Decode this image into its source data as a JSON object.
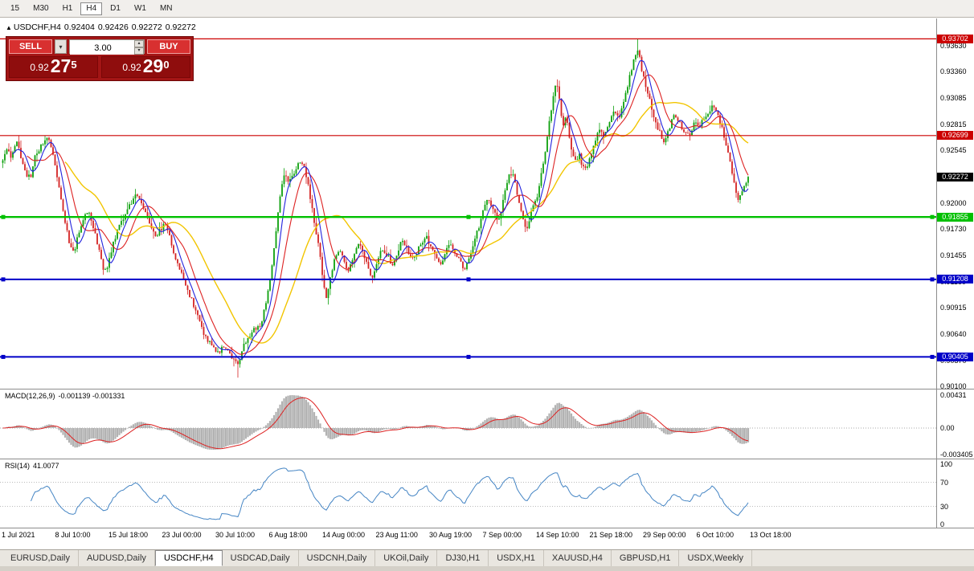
{
  "icons": {
    "bar_up_arrow": "▲",
    "dropdown_caret": "▾",
    "spin_up": "▴",
    "spin_down": "▾"
  },
  "toolbar": {
    "timeframes": [
      {
        "label": "15",
        "active": false
      },
      {
        "label": "M30",
        "active": false
      },
      {
        "label": "H1",
        "active": false
      },
      {
        "label": "H4",
        "active": true
      },
      {
        "label": "D1",
        "active": false
      },
      {
        "label": "W1",
        "active": false
      },
      {
        "label": "MN",
        "active": false
      }
    ]
  },
  "chart_header": {
    "symbol": "USDCHF,H4",
    "open": "0.92404",
    "high": "0.92426",
    "low": "0.92272",
    "close": "0.92272"
  },
  "trade_panel": {
    "sell_label": "SELL",
    "buy_label": "BUY",
    "volume": "3.00",
    "bid": {
      "prefix": "0.92",
      "big": "27",
      "sup": "5"
    },
    "ask": {
      "prefix": "0.92",
      "big": "29",
      "sup": "0"
    }
  },
  "price_axis": {
    "ticks": [
      "0.93630",
      "0.93360",
      "0.93085",
      "0.92815",
      "0.92545",
      "0.92270",
      "0.92000",
      "0.91730",
      "0.91455",
      "0.91180",
      "0.90915",
      "0.90640",
      "0.90370",
      "0.90100"
    ],
    "levels": [
      {
        "label": "0.93702",
        "value": 0.93702,
        "color": "#cc0000",
        "line_width": 1.2,
        "handles": false,
        "kind": "resistance-line"
      },
      {
        "label": "0.92699",
        "value": 0.92699,
        "color": "#cc0000",
        "line_width": 1.2,
        "handles": false,
        "kind": "resistance-line"
      },
      {
        "label": "0.92272",
        "value": 0.92272,
        "color": "#000000",
        "line_width": 0,
        "handles": false,
        "kind": "current-price-marker"
      },
      {
        "label": "0.91855",
        "value": 0.91855,
        "color": "#00c000",
        "line_width": 2.4,
        "handles": true,
        "kind": "support-line"
      },
      {
        "label": "0.91208",
        "value": 0.91208,
        "color": "#0000c8",
        "line_width": 2,
        "handles": true,
        "kind": "support-line"
      },
      {
        "label": "0.90405",
        "value": 0.90405,
        "color": "#0000c8",
        "line_width": 2,
        "handles": true,
        "kind": "support-line"
      }
    ]
  },
  "time_axis": [
    "1 Jul 2021",
    "8 Jul 10:00",
    "15 Jul 18:00",
    "23 Jul 00:00",
    "30 Jul 10:00",
    "6 Aug 18:00",
    "14 Aug 00:00",
    "23 Aug 11:00",
    "30 Aug 19:00",
    "7 Sep 00:00",
    "14 Sep 10:00",
    "21 Sep 18:00",
    "29 Sep 00:00",
    "6 Oct 10:00",
    "13 Oct 18:00"
  ],
  "macd_panel": {
    "label": "MACD(12,26,9)",
    "values": "-0.001139 -0.001331",
    "axis": [
      "0.00431",
      "0.00",
      "-0.003405"
    ]
  },
  "rsi_panel": {
    "label": "RSI(14)",
    "value": "41.0077",
    "axis": [
      "100",
      "70",
      "30",
      "0"
    ]
  },
  "tabs": [
    {
      "label": "EURUSD,Daily",
      "active": false
    },
    {
      "label": "AUDUSD,Daily",
      "active": false
    },
    {
      "label": "USDCHF,H4",
      "active": true
    },
    {
      "label": "USDCAD,Daily",
      "active": false
    },
    {
      "label": "USDCNH,Daily",
      "active": false
    },
    {
      "label": "UKOil,Daily",
      "active": false
    },
    {
      "label": "DJ30,H1",
      "active": false
    },
    {
      "label": "USDX,H1",
      "active": false
    },
    {
      "label": "XAUUSD,H4",
      "active": false
    },
    {
      "label": "GBPUSD,H1",
      "active": false
    },
    {
      "label": "USDX,Weekly",
      "active": false
    }
  ],
  "chart_data": {
    "type": "candlestick",
    "symbol": "USDCHF",
    "timeframe": "H4",
    "last_close": 0.92272,
    "session_high": 0.93702,
    "session_low": 0.9019,
    "y_axis_range": [
      0.901,
      0.93702
    ],
    "horizontal_levels": [
      0.93702,
      0.92699,
      0.91855,
      0.91208,
      0.90405
    ],
    "moving_averages": {
      "fast_blue": 6,
      "medium_red": 13,
      "slow_yellow": 32
    },
    "indicators": {
      "macd": {
        "fast": 12,
        "slow": 26,
        "signal": 9,
        "last_macd": -0.001139,
        "last_signal": -0.001331,
        "axis_max": 0.00431,
        "axis_min": -0.003405
      },
      "rsi": {
        "period": 14,
        "last": 41.0077,
        "levels": [
          70,
          30
        ]
      }
    },
    "price_path": [
      [
        3,
        0.924
      ],
      [
        8,
        0.9256
      ],
      [
        14,
        0.9246
      ],
      [
        20,
        0.9266
      ],
      [
        26,
        0.9248
      ],
      [
        32,
        0.923
      ],
      [
        38,
        0.9226
      ],
      [
        44,
        0.925
      ],
      [
        52,
        0.9261
      ],
      [
        58,
        0.9271
      ],
      [
        64,
        0.9258
      ],
      [
        70,
        0.9232
      ],
      [
        78,
        0.9192
      ],
      [
        86,
        0.916
      ],
      [
        92,
        0.915
      ],
      [
        98,
        0.9169
      ],
      [
        104,
        0.9183
      ],
      [
        110,
        0.9191
      ],
      [
        116,
        0.9173
      ],
      [
        122,
        0.9157
      ],
      [
        128,
        0.9131
      ],
      [
        134,
        0.9134
      ],
      [
        140,
        0.9156
      ],
      [
        148,
        0.9176
      ],
      [
        156,
        0.919
      ],
      [
        164,
        0.9201
      ],
      [
        170,
        0.9208
      ],
      [
        176,
        0.9198
      ],
      [
        182,
        0.9186
      ],
      [
        188,
        0.9174
      ],
      [
        194,
        0.9166
      ],
      [
        200,
        0.9173
      ],
      [
        206,
        0.9178
      ],
      [
        212,
        0.9161
      ],
      [
        218,
        0.9141
      ],
      [
        224,
        0.9129
      ],
      [
        230,
        0.9117
      ],
      [
        236,
        0.9105
      ],
      [
        242,
        0.9091
      ],
      [
        248,
        0.9079
      ],
      [
        254,
        0.9063
      ],
      [
        260,
        0.9056
      ],
      [
        266,
        0.9049
      ],
      [
        272,
        0.9043
      ],
      [
        278,
        0.9051
      ],
      [
        284,
        0.9046
      ],
      [
        290,
        0.9039
      ],
      [
        296,
        0.9031
      ],
      [
        300,
        0.9046
      ],
      [
        306,
        0.9056
      ],
      [
        312,
        0.9063
      ],
      [
        318,
        0.9071
      ],
      [
        324,
        0.9073
      ],
      [
        330,
        0.9093
      ],
      [
        336,
        0.9121
      ],
      [
        342,
        0.9161
      ],
      [
        348,
        0.9206
      ],
      [
        354,
        0.9229
      ],
      [
        360,
        0.9222
      ],
      [
        366,
        0.9231
      ],
      [
        372,
        0.9241
      ],
      [
        378,
        0.9238
      ],
      [
        384,
        0.9216
      ],
      [
        390,
        0.9186
      ],
      [
        396,
        0.9156
      ],
      [
        402,
        0.9121
      ],
      [
        406,
        0.9101
      ],
      [
        410,
        0.9119
      ],
      [
        416,
        0.9141
      ],
      [
        422,
        0.9153
      ],
      [
        428,
        0.9139
      ],
      [
        434,
        0.9129
      ],
      [
        440,
        0.9146
      ],
      [
        446,
        0.9159
      ],
      [
        452,
        0.9149
      ],
      [
        458,
        0.9131
      ],
      [
        464,
        0.9123
      ],
      [
        470,
        0.9141
      ],
      [
        476,
        0.9153
      ],
      [
        482,
        0.9146
      ],
      [
        488,
        0.9136
      ],
      [
        494,
        0.9149
      ],
      [
        500,
        0.9161
      ],
      [
        506,
        0.9153
      ],
      [
        512,
        0.9141
      ],
      [
        518,
        0.9149
      ],
      [
        524,
        0.9159
      ],
      [
        530,
        0.9166
      ],
      [
        536,
        0.9153
      ],
      [
        542,
        0.9143
      ],
      [
        548,
        0.9136
      ],
      [
        554,
        0.9149
      ],
      [
        560,
        0.9156
      ],
      [
        566,
        0.9146
      ],
      [
        572,
        0.9139
      ],
      [
        578,
        0.9129
      ],
      [
        584,
        0.9141
      ],
      [
        590,
        0.9159
      ],
      [
        596,
        0.9176
      ],
      [
        602,
        0.9196
      ],
      [
        608,
        0.9204
      ],
      [
        614,
        0.9193
      ],
      [
        620,
        0.9183
      ],
      [
        626,
        0.9201
      ],
      [
        632,
        0.9226
      ],
      [
        638,
        0.9233
      ],
      [
        644,
        0.9206
      ],
      [
        650,
        0.9184
      ],
      [
        656,
        0.9173
      ],
      [
        662,
        0.9196
      ],
      [
        668,
        0.9206
      ],
      [
        674,
        0.9231
      ],
      [
        680,
        0.9263
      ],
      [
        686,
        0.9296
      ],
      [
        692,
        0.9326
      ],
      [
        696,
        0.9311
      ],
      [
        700,
        0.9276
      ],
      [
        704,
        0.9291
      ],
      [
        708,
        0.9271
      ],
      [
        712,
        0.9253
      ],
      [
        716,
        0.9243
      ],
      [
        720,
        0.9251
      ],
      [
        724,
        0.9241
      ],
      [
        728,
        0.9233
      ],
      [
        734,
        0.9246
      ],
      [
        740,
        0.9263
      ],
      [
        746,
        0.9276
      ],
      [
        752,
        0.9271
      ],
      [
        758,
        0.9283
      ],
      [
        764,
        0.9296
      ],
      [
        770,
        0.9289
      ],
      [
        776,
        0.9303
      ],
      [
        782,
        0.9326
      ],
      [
        788,
        0.9346
      ],
      [
        793,
        0.9362
      ],
      [
        798,
        0.9341
      ],
      [
        804,
        0.9321
      ],
      [
        810,
        0.9301
      ],
      [
        816,
        0.9283
      ],
      [
        822,
        0.9271
      ],
      [
        828,
        0.9263
      ],
      [
        834,
        0.9281
      ],
      [
        840,
        0.9291
      ],
      [
        846,
        0.9283
      ],
      [
        852,
        0.9273
      ],
      [
        858,
        0.9269
      ],
      [
        864,
        0.9283
      ],
      [
        870,
        0.9277
      ],
      [
        876,
        0.9289
      ],
      [
        882,
        0.9296
      ],
      [
        888,
        0.9303
      ],
      [
        894,
        0.9289
      ],
      [
        900,
        0.9273
      ],
      [
        906,
        0.9251
      ],
      [
        912,
        0.9226
      ],
      [
        918,
        0.9201
      ],
      [
        924,
        0.9213
      ],
      [
        930,
        0.92272
      ]
    ]
  }
}
